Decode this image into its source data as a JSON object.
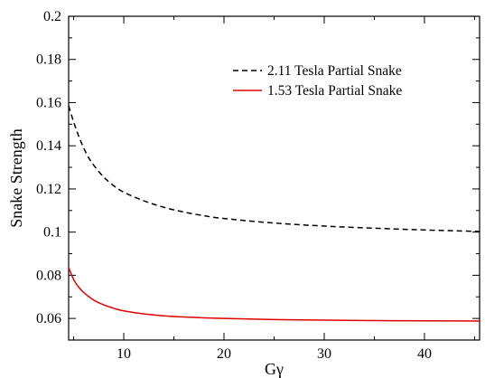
{
  "chart_data": {
    "type": "line",
    "xlabel": "Gγ",
    "ylabel": "Snake Strength",
    "xlim": [
      4.5,
      45.5
    ],
    "ylim": [
      0.05,
      0.2
    ],
    "x_ticks": [
      10,
      20,
      30,
      40
    ],
    "x_tick_labels": [
      "10",
      "20",
      "30",
      "40"
    ],
    "y_ticks": [
      0.06,
      0.08,
      0.1,
      0.12,
      0.14,
      0.16,
      0.18,
      0.2
    ],
    "y_tick_labels": [
      "0.06",
      "0.08",
      "0.1",
      "0.12",
      "0.14",
      "0.16",
      "0.18",
      "0.2"
    ],
    "grid": false,
    "legend_position": "top-right",
    "series": [
      {
        "name": "2.11 Tesla Partial Snake",
        "color": "#000000",
        "dash": "dashed",
        "x": [
          4.5,
          5,
          5.5,
          6,
          6.5,
          7,
          8,
          9,
          10,
          12,
          14,
          16,
          18,
          20,
          25,
          30,
          35,
          40,
          45.5
        ],
        "y": [
          0.1585,
          0.151,
          0.1445,
          0.139,
          0.1345,
          0.131,
          0.1255,
          0.1215,
          0.1185,
          0.1145,
          0.1115,
          0.1093,
          0.1076,
          0.1063,
          0.1042,
          0.1028,
          0.1018,
          0.101,
          0.1003
        ]
      },
      {
        "name": "1.53 Tesla Partial Snake",
        "color": "#e00000",
        "dash": "solid",
        "x": [
          4.5,
          5,
          5.5,
          6,
          7,
          8,
          9,
          10,
          12,
          15,
          20,
          25,
          30,
          35,
          40,
          45.5
        ],
        "y": [
          0.0835,
          0.078,
          0.0745,
          0.072,
          0.0685,
          0.0663,
          0.0647,
          0.0635,
          0.0621,
          0.0609,
          0.06,
          0.0595,
          0.0592,
          0.059,
          0.0589,
          0.0588
        ]
      }
    ]
  }
}
